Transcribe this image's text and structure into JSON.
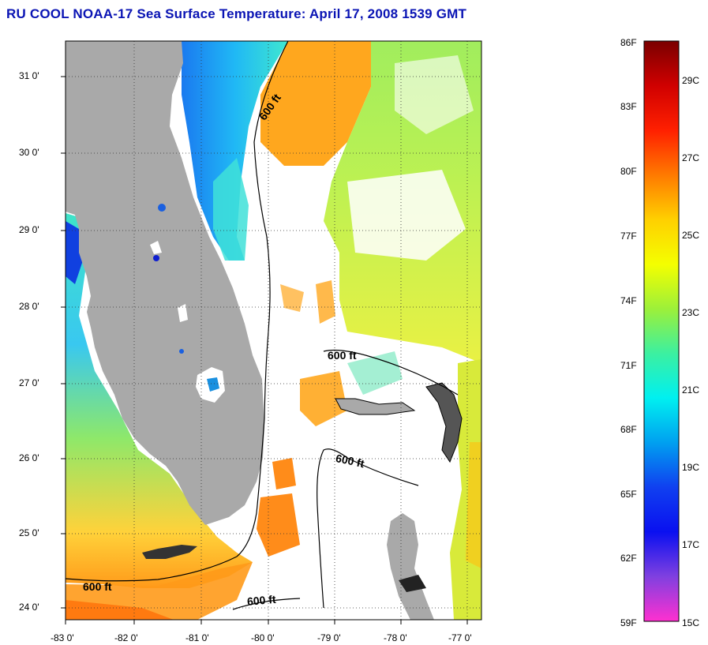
{
  "title": "RU COOL  NOAA-17  Sea Surface Temperature:  April 17, 2008 1539 GMT",
  "map": {
    "x_ticks": [
      "-83 0'",
      "-82 0'",
      "-81 0'",
      "-80 0'",
      "-79 0'",
      "-78 0'",
      "-77 0'"
    ],
    "y_ticks": [
      "31 0'",
      "30 0'",
      "29 0'",
      "28 0'",
      "27 0'",
      "26 0'",
      "25 0'",
      "24 0'"
    ],
    "contour_labels": [
      "600 ft",
      "600 ft",
      "600 ft",
      "600 ft",
      "600 ft"
    ],
    "colors": {
      "land": "#a9a9a9",
      "cloud": "#ffffff",
      "contour": "#000000"
    }
  },
  "colorbar": {
    "f_labels": [
      "86F",
      "83F",
      "80F",
      "77F",
      "74F",
      "71F",
      "68F",
      "65F",
      "62F",
      "59F"
    ],
    "c_labels": [
      "29C",
      "27C",
      "25C",
      "23C",
      "21C",
      "19C",
      "17C",
      "15C"
    ],
    "gradient": [
      "#7a0000",
      "#d00000",
      "#ff2000",
      "#ff7a00",
      "#ffd000",
      "#f4ff00",
      "#9cf03a",
      "#3cf0a0",
      "#00f0f0",
      "#00a0f0",
      "#1040f0",
      "#0a10f0",
      "#8040e0",
      "#ff30d0"
    ]
  }
}
